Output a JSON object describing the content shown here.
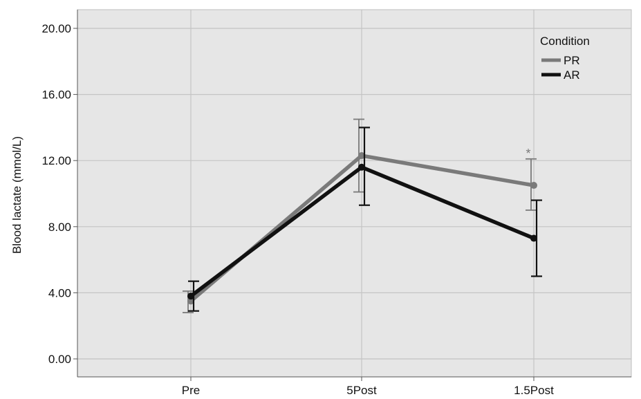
{
  "chart_data": {
    "type": "line",
    "categories": [
      "Pre",
      "5Post",
      "1.5Post"
    ],
    "ylabel": "Blood lactate (mmol/L)",
    "xlabel": "",
    "ylim": [
      -1,
      21
    ],
    "yticks": [
      "0.00",
      "4.00",
      "8.00",
      "12.00",
      "16.00",
      "20.00"
    ],
    "grid": true,
    "legend": {
      "title": "Condition",
      "placement": "top-right"
    },
    "series": [
      {
        "name": "PR",
        "color": "#7a7a7a",
        "values": [
          3.5,
          12.3,
          10.5
        ],
        "error_low": [
          2.8,
          10.1,
          9.0
        ],
        "error_high": [
          4.1,
          14.5,
          12.1
        ]
      },
      {
        "name": "AR",
        "color": "#111111",
        "values": [
          3.8,
          11.6,
          7.3
        ],
        "error_low": [
          2.9,
          9.3,
          5.0
        ],
        "error_high": [
          4.7,
          14.0,
          9.6
        ]
      }
    ],
    "annotations": [
      {
        "text": "*",
        "category": "1.5Post",
        "y": 12.6
      }
    ]
  }
}
